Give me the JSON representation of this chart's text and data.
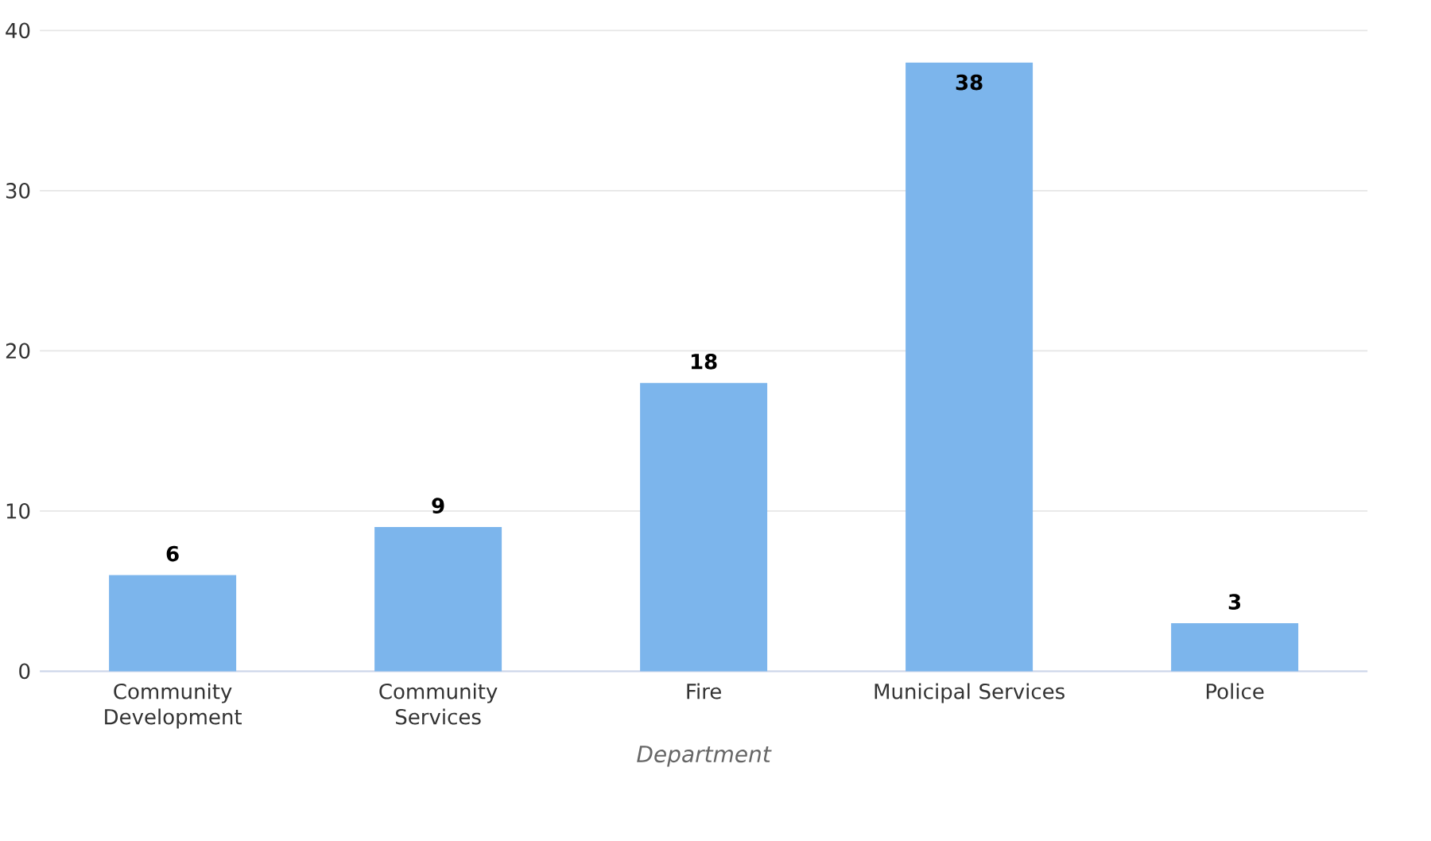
{
  "chart_data": {
    "type": "bar",
    "categories": [
      "Community Development",
      "Community Services",
      "Fire",
      "Municipal Services",
      "Police"
    ],
    "values": [
      6,
      9,
      18,
      38,
      3
    ],
    "color": "#7cb5ec",
    "xlabel": "Department",
    "ylim": [
      0,
      40
    ],
    "yticks": [
      0,
      10,
      20,
      30,
      40
    ],
    "grid": "y",
    "data_labels": true
  }
}
